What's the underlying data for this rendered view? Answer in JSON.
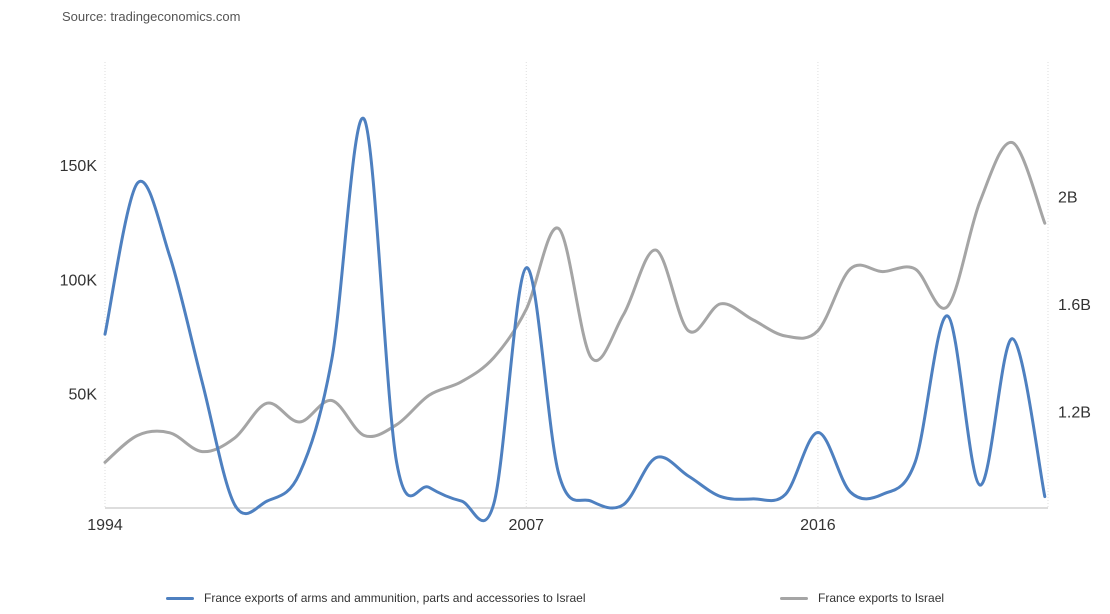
{
  "source": "Source: tradingeconomics.com",
  "chart_data": {
    "type": "line",
    "x_ticks": [
      "1994",
      "2007",
      "2016"
    ],
    "xlim": [
      1994,
      2023.1
    ],
    "y_left": {
      "ticks": [
        "50K",
        "100K",
        "150K"
      ],
      "tick_values": [
        50000,
        100000,
        150000
      ],
      "ylim": [
        0,
        195000
      ]
    },
    "y_right": {
      "ticks": [
        "1.2B",
        "1.6B",
        "2B"
      ],
      "tick_values": [
        1200000000,
        1600000000,
        2000000000
      ],
      "ylim": [
        840000000,
        2500000000
      ]
    },
    "grid": "vertical",
    "legend_position": "bottom",
    "series": [
      {
        "name": "France exports of arms and ammunition, parts and accessories to Israel",
        "axis": "left",
        "color": "#4e80c0",
        "x": [
          1994,
          1995,
          1996,
          1997,
          1998,
          1999,
          2000,
          2001,
          2002,
          2003,
          2004,
          2005,
          2006,
          2007,
          2008,
          2009,
          2010,
          2011,
          2012,
          2013,
          2014,
          2015,
          2016,
          2017,
          2018,
          2019,
          2020,
          2021,
          2022,
          2023
        ],
        "values": [
          76000,
          142000,
          110000,
          55000,
          1500,
          3000,
          15000,
          65000,
          170000,
          20000,
          9000,
          3000,
          2000,
          105000,
          15000,
          3000,
          1500,
          22000,
          14000,
          5000,
          4000,
          6000,
          33000,
          7000,
          6000,
          20000,
          84000,
          10000,
          74000,
          5000
        ]
      },
      {
        "name": "France exports to Israel",
        "axis": "right",
        "color": "#a5a5a5",
        "x": [
          1994,
          1995,
          1996,
          1997,
          1998,
          1999,
          2000,
          2001,
          2002,
          2003,
          2004,
          2005,
          2006,
          2007,
          2008,
          2009,
          2010,
          2011,
          2012,
          2013,
          2014,
          2015,
          2016,
          2017,
          2018,
          2019,
          2020,
          2021,
          2022,
          2023
        ],
        "values": [
          1010000000,
          1110000000,
          1120000000,
          1050000000,
          1100000000,
          1230000000,
          1160000000,
          1240000000,
          1110000000,
          1150000000,
          1260000000,
          1310000000,
          1400000000,
          1580000000,
          1880000000,
          1400000000,
          1560000000,
          1800000000,
          1500000000,
          1600000000,
          1540000000,
          1480000000,
          1500000000,
          1730000000,
          1720000000,
          1730000000,
          1590000000,
          1980000000,
          2200000000,
          1900000000
        ]
      }
    ]
  }
}
